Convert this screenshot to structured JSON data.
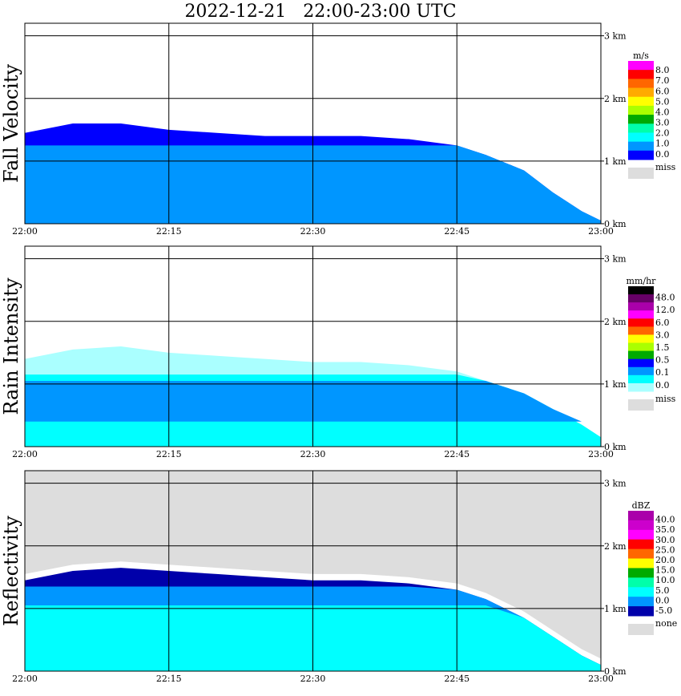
{
  "title": "2022-12-21   22:00-23:00 UTC",
  "x_ticks": [
    "22:00",
    "22:15",
    "22:30",
    "22:45",
    "23:00"
  ],
  "y_ticks": [
    "0 km",
    "1 km",
    "2 km",
    "3 km"
  ],
  "chart_data": [
    {
      "type": "heatmap",
      "ylabel": "Fall Velocity",
      "colorbar_unit": "m/s",
      "colorbar_labels": [
        "8.0",
        "7.0",
        "6.0",
        "5.0",
        "4.0",
        "3.0",
        "2.0",
        "1.0",
        "0.0"
      ],
      "colorbar_colors": [
        "#ff00ff",
        "#ff0000",
        "#ff6600",
        "#ffaa00",
        "#ffff00",
        "#aaff00",
        "#00aa00",
        "#00ffaa",
        "#00ffff",
        "#0096ff",
        "#0000ff"
      ],
      "missing_label": "miss",
      "missing_color": "#dddddd",
      "x_range": [
        "22:00",
        "23:00"
      ],
      "y_range_km": [
        0,
        3.2
      ],
      "echo_top_km": [
        [
          "22:00",
          1.45
        ],
        [
          "22:05",
          1.6
        ],
        [
          "22:10",
          1.6
        ],
        [
          "22:15",
          1.5
        ],
        [
          "22:20",
          1.45
        ],
        [
          "22:25",
          1.4
        ],
        [
          "22:30",
          1.4
        ],
        [
          "22:35",
          1.4
        ],
        [
          "22:40",
          1.35
        ],
        [
          "22:45",
          1.25
        ],
        [
          "22:48",
          1.1
        ],
        [
          "22:52",
          0.85
        ],
        [
          "22:55",
          0.5
        ],
        [
          "22:58",
          0.2
        ],
        [
          "23:00",
          0.05
        ]
      ],
      "layers": [
        {
          "color": "#0000ff",
          "from": 0.0,
          "to": "top"
        },
        {
          "color": "#0096ff",
          "from": 0.0,
          "to": 1.25
        }
      ]
    },
    {
      "type": "heatmap",
      "ylabel": "Rain Intensity",
      "colorbar_unit": "mm/hr",
      "colorbar_labels": [
        "48.0",
        "12.0",
        "6.0",
        "3.0",
        "1.5",
        "0.5",
        "0.1",
        "0.0"
      ],
      "colorbar_colors": [
        "#000000",
        "#660066",
        "#aa00aa",
        "#ff00ff",
        "#ff0000",
        "#ff6600",
        "#ffff00",
        "#aaff00",
        "#00aa00",
        "#0000ff",
        "#0096ff",
        "#00ffff",
        "#aaffff"
      ],
      "missing_label": "miss",
      "missing_color": "#dddddd",
      "x_range": [
        "22:00",
        "23:00"
      ],
      "y_range_km": [
        0,
        3.2
      ],
      "echo_top_km": [
        [
          "22:00",
          1.4
        ],
        [
          "22:05",
          1.55
        ],
        [
          "22:10",
          1.6
        ],
        [
          "22:15",
          1.5
        ],
        [
          "22:20",
          1.45
        ],
        [
          "22:25",
          1.4
        ],
        [
          "22:30",
          1.35
        ],
        [
          "22:35",
          1.35
        ],
        [
          "22:40",
          1.3
        ],
        [
          "22:45",
          1.2
        ],
        [
          "22:48",
          1.05
        ],
        [
          "22:52",
          0.85
        ],
        [
          "22:55",
          0.6
        ],
        [
          "22:58",
          0.35
        ],
        [
          "23:00",
          0.15
        ]
      ],
      "layers": [
        {
          "color": "#aaffff",
          "from": 0.0,
          "to": "top"
        },
        {
          "color": "#00ffff",
          "from": 0.0,
          "to": 1.15
        },
        {
          "color": "#0096ff",
          "from": 0.4,
          "to": 1.05
        }
      ]
    },
    {
      "type": "heatmap",
      "ylabel": "Reflectivity",
      "colorbar_unit": "dBZ",
      "colorbar_labels": [
        "40.0",
        "35.0",
        "30.0",
        "25.0",
        "20.0",
        "15.0",
        "10.0",
        "5.0",
        "0.0",
        "-5.0"
      ],
      "colorbar_colors": [
        "#aa00aa",
        "#cc00cc",
        "#ff00ff",
        "#ff0000",
        "#ff6600",
        "#ffff00",
        "#00aa00",
        "#00ffaa",
        "#00ffff",
        "#0096ff",
        "#0000aa"
      ],
      "missing_label": "none",
      "missing_color": "#dddddd",
      "x_range": [
        "22:00",
        "23:00"
      ],
      "y_range_km": [
        0,
        3.2
      ],
      "echo_top_km": [
        [
          "22:00",
          1.45
        ],
        [
          "22:05",
          1.6
        ],
        [
          "22:10",
          1.65
        ],
        [
          "22:15",
          1.6
        ],
        [
          "22:20",
          1.55
        ],
        [
          "22:25",
          1.5
        ],
        [
          "22:30",
          1.45
        ],
        [
          "22:35",
          1.45
        ],
        [
          "22:40",
          1.4
        ],
        [
          "22:45",
          1.3
        ],
        [
          "22:48",
          1.15
        ],
        [
          "22:52",
          0.85
        ],
        [
          "22:55",
          0.55
        ],
        [
          "22:58",
          0.25
        ],
        [
          "23:00",
          0.1
        ]
      ],
      "layers": [
        {
          "color": "#0000aa",
          "from": 0.0,
          "to": "top"
        },
        {
          "color": "#0096ff",
          "from": 0.0,
          "to": 1.35
        },
        {
          "color": "#00ffff",
          "from": 0.0,
          "to": 1.05
        }
      ]
    }
  ]
}
